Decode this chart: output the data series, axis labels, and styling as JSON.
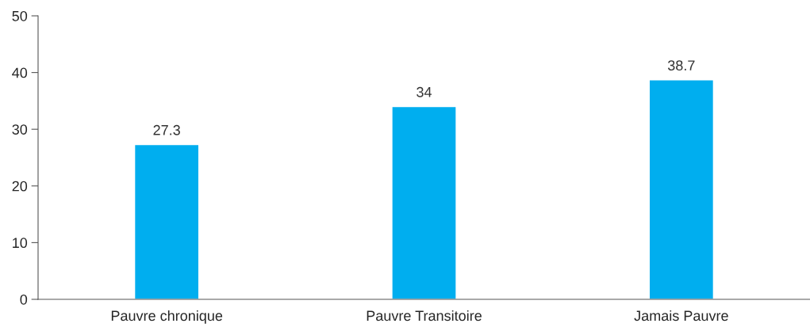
{
  "chart_data": {
    "type": "bar",
    "categories": [
      "Pauvre chronique",
      "Pauvre Transitoire",
      "Jamais Pauvre"
    ],
    "values": [
      27.3,
      34,
      38.7
    ],
    "color": "#00aeef",
    "ylim": [
      0,
      50
    ],
    "yticks": [
      0,
      10,
      20,
      30,
      40,
      50
    ],
    "data_labels": true,
    "grid": false,
    "legend": false
  }
}
